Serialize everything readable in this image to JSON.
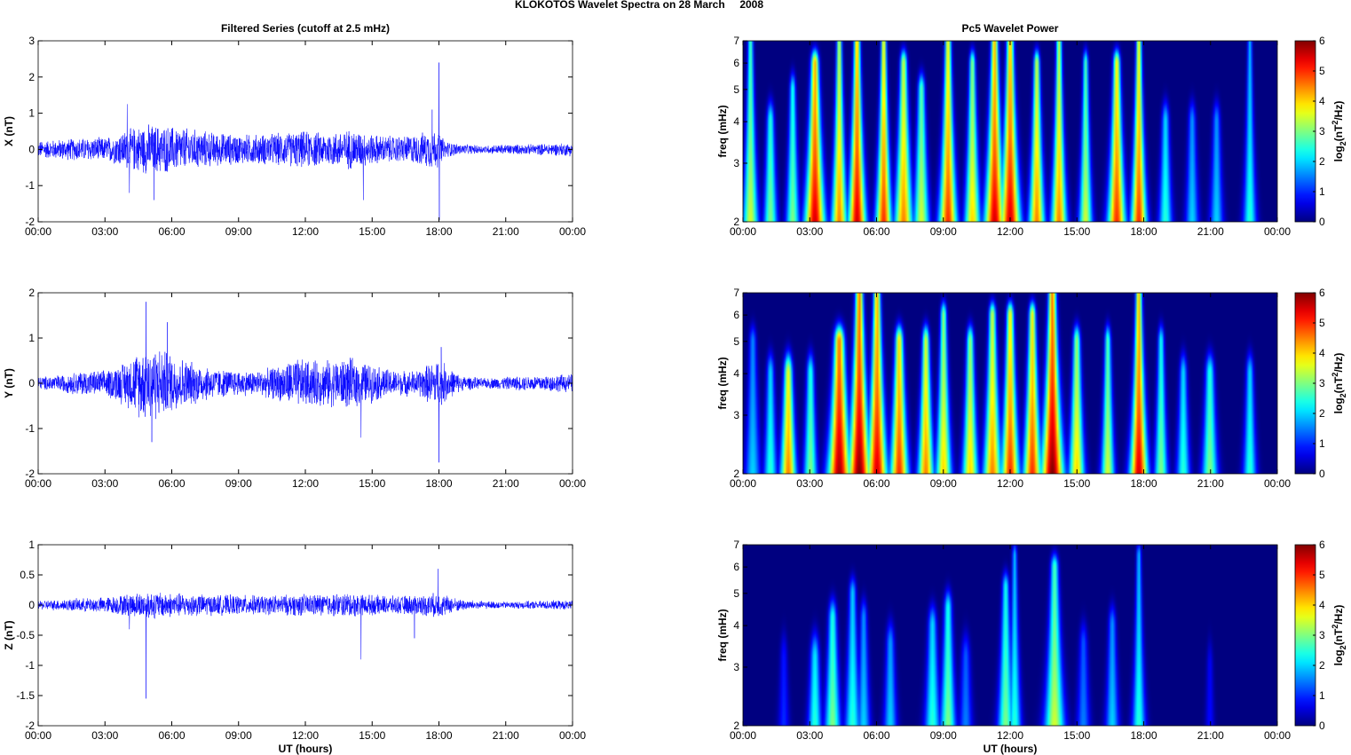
{
  "figure": {
    "suptitle": "KLOKOTOS Wavelet Spectra on 28 March     2008"
  },
  "colors": {
    "trace": "#0000ff",
    "axes": "#000000",
    "colormap": "jet"
  },
  "chart_data": [
    {
      "id": "x-series",
      "type": "line",
      "title": "Filtered Series (cutoff at 2.5 mHz)",
      "ylabel": "X (nT)",
      "xlabel": "",
      "xlim": [
        "00:00",
        "24:00"
      ],
      "xticks": [
        "00:00",
        "03:00",
        "06:00",
        "09:00",
        "12:00",
        "15:00",
        "18:00",
        "21:00",
        "00:00"
      ],
      "ylim": [
        -2,
        3
      ],
      "yticks": [
        "-2",
        "-1",
        "0",
        "1",
        "2",
        "3"
      ],
      "envelope": {
        "x_hours": [
          0,
          1,
          2,
          3,
          3.5,
          4,
          4.5,
          5,
          6,
          7,
          8,
          9,
          10,
          11,
          12,
          13,
          14,
          14.5,
          15,
          16,
          17,
          17.8,
          18,
          18.3,
          19,
          20,
          21,
          22,
          23,
          24
        ],
        "amplitude": [
          0.25,
          0.3,
          0.35,
          0.35,
          0.45,
          0.6,
          0.7,
          0.75,
          0.7,
          0.6,
          0.5,
          0.45,
          0.45,
          0.5,
          0.55,
          0.5,
          0.6,
          0.55,
          0.45,
          0.4,
          0.45,
          0.6,
          0.5,
          0.25,
          0.15,
          0.12,
          0.15,
          0.15,
          0.18,
          0.2
        ]
      },
      "spikes": [
        {
          "x_hours": 4.0,
          "y": 1.25
        },
        {
          "x_hours": 4.1,
          "y": -1.2
        },
        {
          "x_hours": 5.2,
          "y": -1.4
        },
        {
          "x_hours": 14.6,
          "y": -1.4
        },
        {
          "x_hours": 18.0,
          "y": 2.4
        },
        {
          "x_hours": 18.02,
          "y": -1.95
        },
        {
          "x_hours": 17.7,
          "y": 1.1
        }
      ]
    },
    {
      "id": "y-series",
      "type": "line",
      "title": "",
      "ylabel": "Y (nT)",
      "xlabel": "",
      "xlim": [
        "00:00",
        "24:00"
      ],
      "xticks": [
        "00:00",
        "03:00",
        "06:00",
        "09:00",
        "12:00",
        "15:00",
        "18:00",
        "21:00",
        "00:00"
      ],
      "ylim": [
        -2,
        2
      ],
      "yticks": [
        "-2",
        "-1",
        "0",
        "1",
        "2"
      ],
      "envelope": {
        "x_hours": [
          0,
          1,
          2,
          3,
          4,
          4.5,
          5,
          5.5,
          6,
          7,
          8,
          9,
          10,
          11,
          11.5,
          12,
          13,
          14,
          15,
          16,
          17,
          18,
          18.5,
          19,
          20,
          21,
          22,
          23,
          24
        ],
        "amplitude": [
          0.15,
          0.2,
          0.3,
          0.3,
          0.55,
          0.8,
          0.9,
          0.85,
          0.7,
          0.5,
          0.35,
          0.3,
          0.3,
          0.45,
          0.6,
          0.55,
          0.55,
          0.6,
          0.45,
          0.3,
          0.3,
          0.6,
          0.35,
          0.18,
          0.12,
          0.15,
          0.18,
          0.2,
          0.22
        ]
      },
      "spikes": [
        {
          "x_hours": 4.85,
          "y": 1.8
        },
        {
          "x_hours": 5.1,
          "y": -1.3
        },
        {
          "x_hours": 5.8,
          "y": 1.35
        },
        {
          "x_hours": 18.0,
          "y": -1.75
        },
        {
          "x_hours": 18.1,
          "y": 0.8
        },
        {
          "x_hours": 14.5,
          "y": -1.2
        }
      ]
    },
    {
      "id": "z-series",
      "type": "line",
      "title": "",
      "ylabel": "Z (nT)",
      "xlabel": "UT (hours)",
      "xlim": [
        "00:00",
        "24:00"
      ],
      "xticks": [
        "00:00",
        "03:00",
        "06:00",
        "09:00",
        "12:00",
        "15:00",
        "18:00",
        "21:00",
        "00:00"
      ],
      "ylim": [
        -2,
        1
      ],
      "yticks": [
        "-2",
        "-1.5",
        "-1",
        "-0.5",
        "0",
        "0.5",
        "1"
      ],
      "envelope": {
        "x_hours": [
          0,
          1,
          2,
          3,
          4,
          5,
          6,
          7,
          8,
          9,
          10,
          11,
          12,
          13,
          14,
          15,
          16,
          17,
          18,
          19,
          20,
          21,
          22,
          23,
          24
        ],
        "amplitude": [
          0.08,
          0.1,
          0.12,
          0.14,
          0.2,
          0.25,
          0.22,
          0.2,
          0.18,
          0.18,
          0.17,
          0.18,
          0.2,
          0.2,
          0.22,
          0.18,
          0.16,
          0.18,
          0.22,
          0.1,
          0.07,
          0.06,
          0.07,
          0.08,
          0.08
        ]
      },
      "spikes": [
        {
          "x_hours": 4.85,
          "y": -1.55
        },
        {
          "x_hours": 4.1,
          "y": -0.4
        },
        {
          "x_hours": 14.5,
          "y": -0.9
        },
        {
          "x_hours": 17.95,
          "y": 0.6
        },
        {
          "x_hours": 16.9,
          "y": -0.55
        }
      ]
    },
    {
      "id": "x-power",
      "type": "heatmap",
      "title": "Pc5 Wavelet Power",
      "ylabel": "freq (mHz)",
      "xlabel": "",
      "xlim": [
        "00:00",
        "24:00"
      ],
      "xticks": [
        "00:00",
        "03:00",
        "06:00",
        "09:00",
        "12:00",
        "15:00",
        "18:00",
        "21:00",
        "00:00"
      ],
      "ylim": [
        2,
        7
      ],
      "yscale": "log",
      "yticks": [
        "2",
        "3",
        "4",
        "5",
        "6",
        "7"
      ],
      "colorbar": {
        "label": "log2(nT2/Hz)",
        "range": [
          0,
          6
        ],
        "ticks": [
          "0",
          "1",
          "2",
          "3",
          "4",
          "5",
          "6"
        ]
      },
      "bursts": [
        {
          "t": 0.3,
          "level": 3.5,
          "width": 0.35,
          "top": 7
        },
        {
          "t": 1.2,
          "level": 3.0,
          "width": 0.3,
          "top": 4
        },
        {
          "t": 2.2,
          "level": 3.0,
          "width": 0.3,
          "top": 5
        },
        {
          "t": 3.2,
          "level": 5.5,
          "width": 0.45,
          "top": 6
        },
        {
          "t": 4.3,
          "level": 4.5,
          "width": 0.35,
          "top": 7
        },
        {
          "t": 5.1,
          "level": 5.5,
          "width": 0.4,
          "top": 7
        },
        {
          "t": 6.3,
          "level": 5.0,
          "width": 0.35,
          "top": 7
        },
        {
          "t": 7.2,
          "level": 4.5,
          "width": 0.4,
          "top": 6
        },
        {
          "t": 8.0,
          "level": 3.5,
          "width": 0.35,
          "top": 5
        },
        {
          "t": 9.2,
          "level": 5.0,
          "width": 0.4,
          "top": 7
        },
        {
          "t": 10.3,
          "level": 4.0,
          "width": 0.35,
          "top": 6
        },
        {
          "t": 11.3,
          "level": 5.5,
          "width": 0.45,
          "top": 7
        },
        {
          "t": 12.0,
          "level": 5.5,
          "width": 0.45,
          "top": 7
        },
        {
          "t": 13.2,
          "level": 4.5,
          "width": 0.35,
          "top": 6
        },
        {
          "t": 14.2,
          "level": 4.5,
          "width": 0.35,
          "top": 7
        },
        {
          "t": 15.4,
          "level": 3.5,
          "width": 0.3,
          "top": 6
        },
        {
          "t": 16.8,
          "level": 5.0,
          "width": 0.4,
          "top": 6
        },
        {
          "t": 17.8,
          "level": 5.0,
          "width": 0.35,
          "top": 7
        },
        {
          "t": 19.0,
          "level": 2.5,
          "width": 0.3,
          "top": 4
        },
        {
          "t": 20.2,
          "level": 2.0,
          "width": 0.3,
          "top": 4
        },
        {
          "t": 21.3,
          "level": 2.0,
          "width": 0.3,
          "top": 4
        },
        {
          "t": 22.8,
          "level": 2.5,
          "width": 0.3,
          "top": 7
        }
      ]
    },
    {
      "id": "y-power",
      "type": "heatmap",
      "title": "",
      "ylabel": "freq (mHz)",
      "xlabel": "",
      "xlim": [
        "00:00",
        "24:00"
      ],
      "xticks": [
        "00:00",
        "03:00",
        "06:00",
        "09:00",
        "12:00",
        "15:00",
        "18:00",
        "21:00",
        "00:00"
      ],
      "ylim": [
        2,
        7
      ],
      "yscale": "log",
      "yticks": [
        "2",
        "3",
        "4",
        "5",
        "6",
        "7"
      ],
      "colorbar": {
        "label": "log2(nT2/Hz)",
        "range": [
          0,
          6
        ],
        "ticks": [
          "0",
          "1",
          "2",
          "3",
          "4",
          "5",
          "6"
        ]
      },
      "bursts": [
        {
          "t": 0.4,
          "level": 2.0,
          "width": 0.35,
          "top": 5
        },
        {
          "t": 1.2,
          "level": 2.5,
          "width": 0.3,
          "top": 4
        },
        {
          "t": 2.0,
          "level": 4.5,
          "width": 0.35,
          "top": 4
        },
        {
          "t": 3.0,
          "level": 3.0,
          "width": 0.3,
          "top": 4
        },
        {
          "t": 4.3,
          "level": 5.8,
          "width": 0.5,
          "top": 5
        },
        {
          "t": 5.2,
          "level": 6.0,
          "width": 0.5,
          "top": 7
        },
        {
          "t": 6.0,
          "level": 5.5,
          "width": 0.45,
          "top": 7
        },
        {
          "t": 7.0,
          "level": 5.0,
          "width": 0.4,
          "top": 5
        },
        {
          "t": 8.2,
          "level": 4.5,
          "width": 0.35,
          "top": 5
        },
        {
          "t": 9.0,
          "level": 4.0,
          "width": 0.35,
          "top": 6
        },
        {
          "t": 10.2,
          "level": 4.0,
          "width": 0.35,
          "top": 5
        },
        {
          "t": 11.2,
          "level": 4.5,
          "width": 0.4,
          "top": 6
        },
        {
          "t": 12.0,
          "level": 5.0,
          "width": 0.4,
          "top": 6
        },
        {
          "t": 13.0,
          "level": 5.0,
          "width": 0.4,
          "top": 6
        },
        {
          "t": 13.9,
          "level": 6.0,
          "width": 0.5,
          "top": 7
        },
        {
          "t": 15.0,
          "level": 4.0,
          "width": 0.35,
          "top": 5
        },
        {
          "t": 16.4,
          "level": 3.5,
          "width": 0.3,
          "top": 5
        },
        {
          "t": 17.8,
          "level": 5.5,
          "width": 0.4,
          "top": 7
        },
        {
          "t": 18.8,
          "level": 3.0,
          "width": 0.3,
          "top": 5
        },
        {
          "t": 19.8,
          "level": 2.5,
          "width": 0.3,
          "top": 4
        },
        {
          "t": 21.0,
          "level": 3.0,
          "width": 0.35,
          "top": 4
        },
        {
          "t": 22.8,
          "level": 2.5,
          "width": 0.3,
          "top": 4
        }
      ]
    },
    {
      "id": "z-power",
      "type": "heatmap",
      "title": "",
      "ylabel": "freq (mHz)",
      "xlabel": "UT (hours)",
      "xlim": [
        "00:00",
        "24:00"
      ],
      "xticks": [
        "00:00",
        "03:00",
        "06:00",
        "09:00",
        "12:00",
        "15:00",
        "18:00",
        "21:00",
        "00:00"
      ],
      "ylim": [
        2,
        7
      ],
      "yscale": "log",
      "yticks": [
        "2",
        "3",
        "4",
        "5",
        "6",
        "7"
      ],
      "colorbar": {
        "label": "log2(nT2/Hz)",
        "range": [
          0,
          6
        ],
        "ticks": [
          "0",
          "1",
          "2",
          "3",
          "4",
          "5",
          "6"
        ]
      },
      "bursts": [
        {
          "t": 1.8,
          "level": 1.0,
          "width": 0.25,
          "top": 3.2
        },
        {
          "t": 3.2,
          "level": 2.5,
          "width": 0.3,
          "top": 3.2
        },
        {
          "t": 4.0,
          "level": 3.0,
          "width": 0.35,
          "top": 4.2
        },
        {
          "t": 4.9,
          "level": 2.5,
          "width": 0.35,
          "top": 5.0
        },
        {
          "t": 5.4,
          "level": 2.0,
          "width": 0.3,
          "top": 4.2
        },
        {
          "t": 6.6,
          "level": 2.0,
          "width": 0.3,
          "top": 3.5
        },
        {
          "t": 8.5,
          "level": 2.5,
          "width": 0.35,
          "top": 4.0
        },
        {
          "t": 9.2,
          "level": 3.0,
          "width": 0.35,
          "top": 4.5
        },
        {
          "t": 10.0,
          "level": 1.5,
          "width": 0.3,
          "top": 3.2
        },
        {
          "t": 11.8,
          "level": 3.0,
          "width": 0.35,
          "top": 5.2
        },
        {
          "t": 12.2,
          "level": 2.5,
          "width": 0.3,
          "top": 6.5
        },
        {
          "t": 14.0,
          "level": 3.5,
          "width": 0.45,
          "top": 6.0
        },
        {
          "t": 15.3,
          "level": 1.5,
          "width": 0.3,
          "top": 3.5
        },
        {
          "t": 16.6,
          "level": 2.0,
          "width": 0.3,
          "top": 4.0
        },
        {
          "t": 17.8,
          "level": 2.5,
          "width": 0.3,
          "top": 6.5
        },
        {
          "t": 21.0,
          "level": 0.8,
          "width": 0.2,
          "top": 3.0
        }
      ]
    }
  ]
}
